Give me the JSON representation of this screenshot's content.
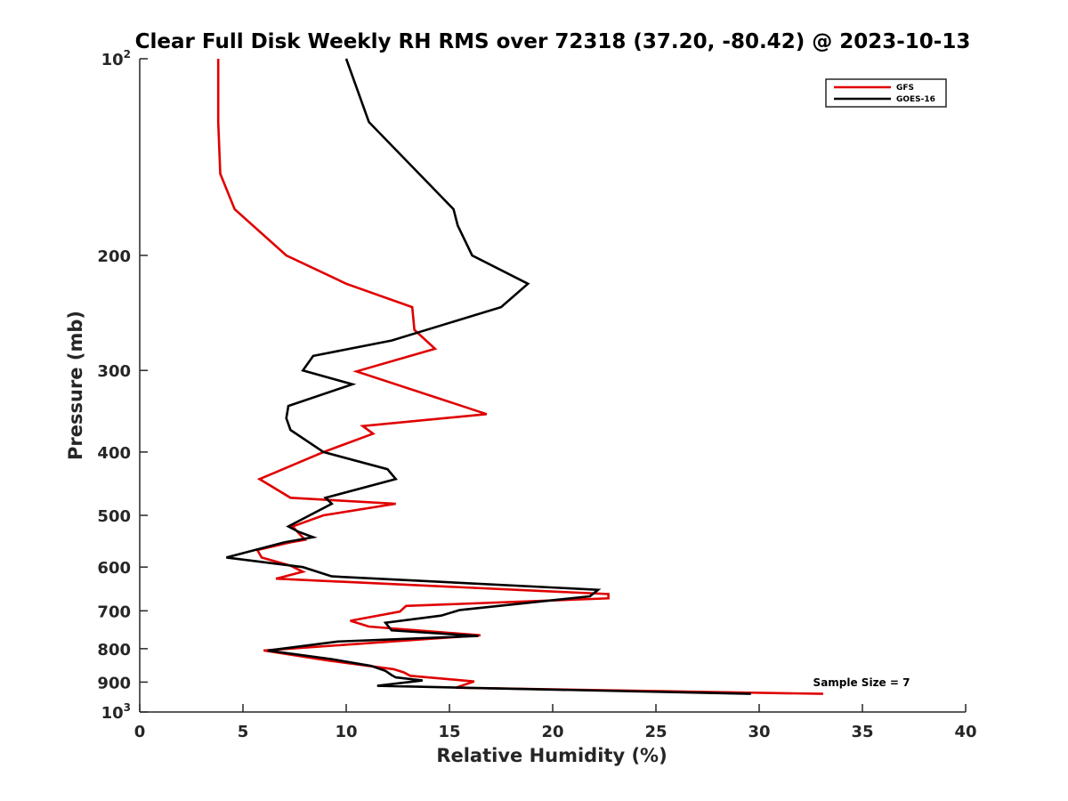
{
  "chart_data": {
    "type": "line",
    "title": "Clear Full Disk Weekly RH RMS over 72318 (37.20, -80.42) @ 2023-10-13",
    "xlabel": "Relative Humidity (%)",
    "ylabel": "Pressure (mb)",
    "xlim": [
      0,
      40
    ],
    "ylim": [
      100,
      1000
    ],
    "yscale": "log",
    "yreversed": true,
    "x_ticks": [
      "0",
      "5",
      "10",
      "15",
      "20",
      "25",
      "30",
      "35",
      "40"
    ],
    "y_ticks": [
      {
        "value": 100,
        "base": "10",
        "exp": "2"
      },
      {
        "value": 200,
        "label": "200"
      },
      {
        "value": 300,
        "label": "300"
      },
      {
        "value": 400,
        "label": "400"
      },
      {
        "value": 500,
        "label": "500"
      },
      {
        "value": 600,
        "label": "600"
      },
      {
        "value": 700,
        "label": "700"
      },
      {
        "value": 800,
        "label": "800"
      },
      {
        "value": 900,
        "label": "900"
      },
      {
        "value": 1000,
        "base": "10",
        "exp": "3"
      }
    ],
    "grid": false,
    "legend_position": "top-right",
    "annotation": "Sample Size = 7",
    "series": [
      {
        "name": "GFS",
        "color": "#e00000",
        "points": [
          [
            3.8,
            100
          ],
          [
            3.8,
            125
          ],
          [
            3.9,
            150
          ],
          [
            4.6,
            170
          ],
          [
            7.1,
            200
          ],
          [
            10.0,
            221
          ],
          [
            13.2,
            240
          ],
          [
            13.3,
            260
          ],
          [
            14.3,
            278
          ],
          [
            10.5,
            301
          ],
          [
            16.8,
            350
          ],
          [
            10.8,
            365
          ],
          [
            11.3,
            375
          ],
          [
            8.9,
            400
          ],
          [
            5.8,
            440
          ],
          [
            7.3,
            470
          ],
          [
            12.4,
            480
          ],
          [
            8.9,
            500
          ],
          [
            7.4,
            520
          ],
          [
            8.0,
            545
          ],
          [
            7.3,
            550
          ],
          [
            5.7,
            565
          ],
          [
            5.9,
            580
          ],
          [
            7.3,
            597
          ],
          [
            7.9,
            610
          ],
          [
            6.6,
            625
          ],
          [
            22.7,
            660
          ],
          [
            22.7,
            670
          ],
          [
            12.9,
            688
          ],
          [
            12.6,
            702
          ],
          [
            10.2,
            725
          ],
          [
            11.1,
            740
          ],
          [
            16.5,
            763
          ],
          [
            6.0,
            805
          ],
          [
            9.1,
            834
          ],
          [
            12.3,
            860
          ],
          [
            12.8,
            870
          ],
          [
            13.1,
            880
          ],
          [
            16.2,
            898
          ],
          [
            15.3,
            918
          ],
          [
            33.1,
            938
          ]
        ]
      },
      {
        "name": "GOES-16",
        "color": "#000000",
        "points": [
          [
            10.0,
            100
          ],
          [
            11.1,
            125
          ],
          [
            15.2,
            170
          ],
          [
            15.4,
            180
          ],
          [
            16.1,
            200
          ],
          [
            18.8,
            221
          ],
          [
            17.5,
            240
          ],
          [
            12.2,
            270
          ],
          [
            8.4,
            285
          ],
          [
            7.9,
            300
          ],
          [
            10.3,
            315
          ],
          [
            7.2,
            340
          ],
          [
            7.1,
            355
          ],
          [
            7.3,
            370
          ],
          [
            8.9,
            400
          ],
          [
            12.0,
            425
          ],
          [
            12.4,
            440
          ],
          [
            9.0,
            470
          ],
          [
            9.3,
            480
          ],
          [
            7.2,
            520
          ],
          [
            7.7,
            530
          ],
          [
            8.4,
            540
          ],
          [
            7.0,
            550
          ],
          [
            4.2,
            580
          ],
          [
            7.9,
            600
          ],
          [
            9.3,
            620
          ],
          [
            22.2,
            650
          ],
          [
            21.8,
            665
          ],
          [
            15.5,
            698
          ],
          [
            14.6,
            712
          ],
          [
            11.9,
            730
          ],
          [
            12.2,
            750
          ],
          [
            16.4,
            765
          ],
          [
            9.6,
            780
          ],
          [
            6.2,
            805
          ],
          [
            9.3,
            830
          ],
          [
            11.2,
            850
          ],
          [
            11.9,
            865
          ],
          [
            12.2,
            878
          ],
          [
            12.4,
            885
          ],
          [
            13.7,
            895
          ],
          [
            11.5,
            912
          ],
          [
            29.6,
            938
          ]
        ]
      }
    ]
  }
}
